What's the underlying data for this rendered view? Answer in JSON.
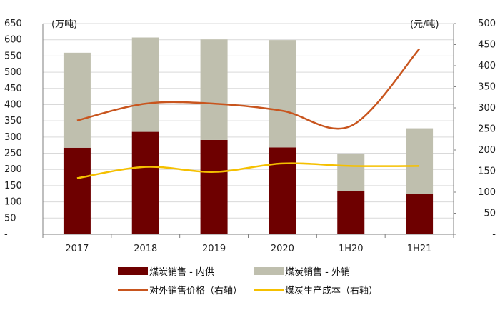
{
  "chart_data": {
    "type": "bar",
    "stacked": true,
    "categories": [
      "2017",
      "2018",
      "2019",
      "2020",
      "1H20",
      "1H21"
    ],
    "y_left": {
      "unit_label": "(万吨)",
      "range": [
        0,
        650
      ],
      "ticks": [
        "-",
        "50",
        "100",
        "150",
        "200",
        "250",
        "300",
        "350",
        "400",
        "450",
        "500",
        "550",
        "600",
        "650"
      ]
    },
    "y_right": {
      "unit_label": "(元/吨)",
      "range": [
        0,
        500
      ],
      "ticks": [
        "-",
        "50",
        "100",
        "150",
        "200",
        "250",
        "300",
        "350",
        "400",
        "450",
        "500"
      ]
    },
    "grid": true,
    "legend_position": "bottom",
    "series": [
      {
        "name": "煤炭销售 - 内供",
        "kind": "bar",
        "axis": "left",
        "color": "#6e0000",
        "values": [
          267,
          316,
          291,
          268,
          133,
          124
        ]
      },
      {
        "name": "煤炭销售 - 外销",
        "kind": "bar",
        "axis": "left",
        "color": "#bfbfae",
        "values": [
          293,
          291,
          310,
          331,
          116,
          203
        ]
      },
      {
        "name": "对外销售价格（右轴）",
        "kind": "line",
        "axis": "right",
        "color": "#c8551e",
        "values": [
          270,
          310,
          310,
          293,
          257,
          440
        ]
      },
      {
        "name": "煤炭生产成本（右轴）",
        "kind": "line",
        "axis": "right",
        "color": "#f5c000",
        "values": [
          133,
          160,
          148,
          168,
          162,
          162
        ]
      }
    ]
  }
}
